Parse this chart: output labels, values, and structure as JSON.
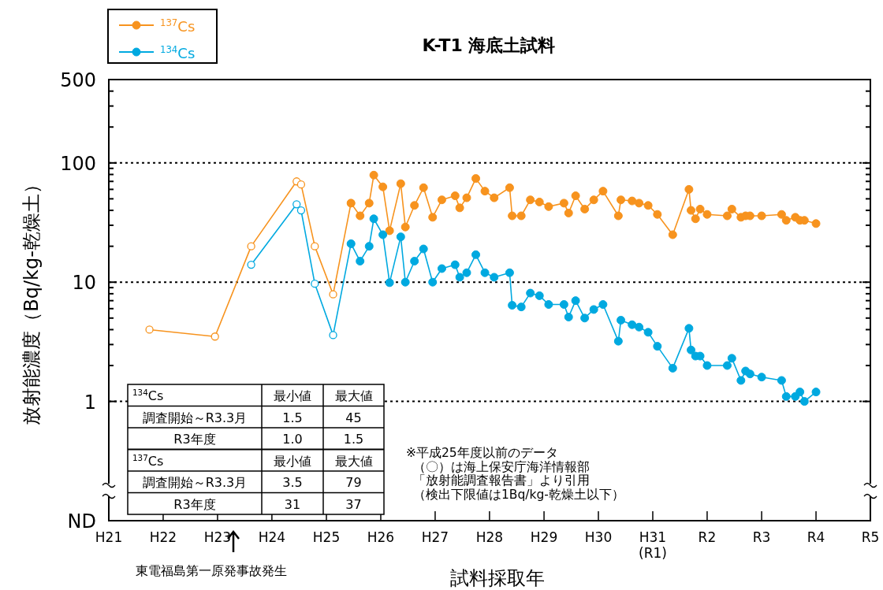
{
  "chart_data": {
    "type": "line",
    "title": "K-T1  海底土試料",
    "xlabel": "試料採取年",
    "ylabel": "放射能濃度（Bq/kg-乾燥土）",
    "log": "y",
    "grid": "y",
    "legend": "top left",
    "marker": "circle",
    "line_style": "solid",
    "xlim": [
      "2009",
      "2023"
    ],
    "xticks": [
      {
        "value": "2009",
        "label": "H21"
      },
      {
        "value": "2010",
        "label": "H22"
      },
      {
        "value": "2011",
        "label": "H23"
      },
      {
        "value": "2012",
        "label": "H24"
      },
      {
        "value": "2013",
        "label": "H25"
      },
      {
        "value": "2014",
        "label": "H26"
      },
      {
        "value": "2015",
        "label": "H27"
      },
      {
        "value": "2016",
        "label": "H28"
      },
      {
        "value": "2017",
        "label": "H29"
      },
      {
        "value": "2018",
        "label": "H30"
      },
      {
        "value": "2019",
        "label": "H31\n(R1)"
      },
      {
        "value": "2020",
        "label": "R2"
      },
      {
        "value": "2021",
        "label": "R3"
      },
      {
        "value": "2022",
        "label": "R4"
      },
      {
        "value": "2023",
        "label": "R5"
      }
    ],
    "ylim": [
      0.1,
      500
    ],
    "yticks": [
      {
        "value": 0.1,
        "label": "ND"
      },
      1,
      10,
      100,
      500
    ],
    "series": [
      {
        "color": "#f7931e",
        "x": [
          "2009-10-01",
          "2010-12-15",
          "2011-08-15",
          "2012-06-15",
          "2012-07-15",
          "2012-10-15",
          "2013-02-15",
          "2013-06-15"
        ],
        "values": [
          4.0,
          3.5,
          20,
          70,
          66,
          20,
          7.9,
          46
        ]
      },
      {
        "color": "#00a9e0",
        "x": [
          "2011-08-15",
          "2012-06-15",
          "2012-07-15",
          "2012-10-15",
          "2013-02-15",
          "2013-06-15"
        ],
        "values": [
          14,
          45,
          40,
          9.7,
          3.6,
          21
        ]
      },
      {
        "name": "$^{137}$Cs",
        "color": "#f7931e",
        "x": [
          "2013-06-15",
          "2013-08-15",
          "2013-10-15",
          "2013-11-15",
          "2014-01-15",
          "2014-03-01",
          "2014-05-15",
          "2014-06-15",
          "2014-08-15",
          "2014-10-15",
          "2014-12-15",
          "2015-02-15",
          "2015-05-15",
          "2015-06-15",
          "2015-08-01",
          "2015-10-01",
          "2015-12-01",
          "2016-02-01",
          "2016-05-15",
          "2016-06-01",
          "2016-08-01",
          "2016-10-01",
          "2016-12-01",
          "2017-02-01",
          "2017-05-15",
          "2017-06-15",
          "2017-08-01",
          "2017-10-01",
          "2017-12-01",
          "2018-02-01",
          "2018-05-15",
          "2018-06-01",
          "2018-08-15",
          "2018-10-01",
          "2018-12-01",
          "2019-02-01",
          "2019-05-15",
          "2019-09-01",
          "2019-09-15",
          "2019-10-15",
          "2019-11-15",
          "2020-01-01",
          "2020-05-15",
          "2020-06-15",
          "2020-08-15",
          "2020-09-15",
          "2020-10-15",
          "2021-01-01",
          "2021-05-15",
          "2021-06-15",
          "2021-08-15",
          "2021-09-15",
          "2021-10-15",
          "2022-01-01"
        ],
        "values": [
          46,
          36,
          46,
          79,
          63,
          27,
          67,
          29,
          44,
          62,
          35,
          49,
          53,
          42,
          51,
          74,
          58,
          51,
          62,
          36,
          36,
          49,
          47,
          43,
          46,
          38,
          53,
          41,
          49,
          58,
          36,
          49,
          48,
          46,
          44,
          37,
          25,
          60,
          40,
          34,
          41,
          37,
          36,
          41,
          35,
          36,
          36,
          36,
          37,
          33,
          35,
          33,
          33,
          31
        ]
      },
      {
        "name": "$^{134}$Cs",
        "color": "#00a9e0",
        "x": [
          "2013-06-15",
          "2013-08-15",
          "2013-10-15",
          "2013-11-15",
          "2014-01-15",
          "2014-03-01",
          "2014-05-15",
          "2014-06-15",
          "2014-08-15",
          "2014-10-15",
          "2014-12-15",
          "2015-02-15",
          "2015-05-15",
          "2015-06-15",
          "2015-08-01",
          "2015-10-01",
          "2015-12-01",
          "2016-02-01",
          "2016-05-15",
          "2016-06-01",
          "2016-08-01",
          "2016-10-01",
          "2016-12-01",
          "2017-02-01",
          "2017-05-15",
          "2017-06-15",
          "2017-08-01",
          "2017-10-01",
          "2017-12-01",
          "2018-02-01",
          "2018-05-15",
          "2018-06-01",
          "2018-08-15",
          "2018-10-01",
          "2018-12-01",
          "2019-02-01",
          "2019-05-15",
          "2019-09-01",
          "2019-09-15",
          "2019-10-15",
          "2019-11-15",
          "2020-01-01",
          "2020-05-15",
          "2020-06-15",
          "2020-08-15",
          "2020-09-15",
          "2020-10-15",
          "2021-01-01",
          "2021-05-15",
          "2021-06-15",
          "2021-08-15",
          "2021-09-15",
          "2021-10-15",
          "2022-01-01"
        ],
        "values": [
          21,
          15,
          20,
          34,
          25,
          9.9,
          24,
          10,
          15,
          19,
          10,
          13,
          14,
          11,
          12,
          17,
          12,
          11,
          12,
          6.4,
          6.2,
          8.1,
          7.7,
          6.5,
          6.5,
          5.1,
          7.0,
          5.0,
          5.9,
          6.5,
          3.2,
          4.8,
          4.4,
          4.2,
          3.8,
          2.9,
          1.9,
          4.1,
          2.7,
          2.4,
          2.4,
          2.0,
          2.0,
          2.3,
          1.5,
          1.8,
          1.7,
          1.6,
          1.5,
          1.1,
          1.1,
          1.2,
          1.0,
          1.2
        ]
      }
    ],
    "annotations": [
      "$^{134}$Cs",
      "最小値",
      "最大値",
      "調査開始～R3.3月",
      "1.5",
      "45",
      "R3年度",
      "1.0",
      "1.5",
      "$^{137}$Cs",
      "最小値",
      "最大値",
      "調査開始～R3.3月",
      "3.5",
      "79",
      "R3年度",
      "31",
      "37",
      "※平成25年度以前のデータ",
      "（〇）は海上保安庁海洋情報部",
      "「放射能調査報告書」より引用",
      "（検出下限値は1Bq/kg-乾燥土以下）",
      "東電福島第一原発事故発生"
    ]
  }
}
